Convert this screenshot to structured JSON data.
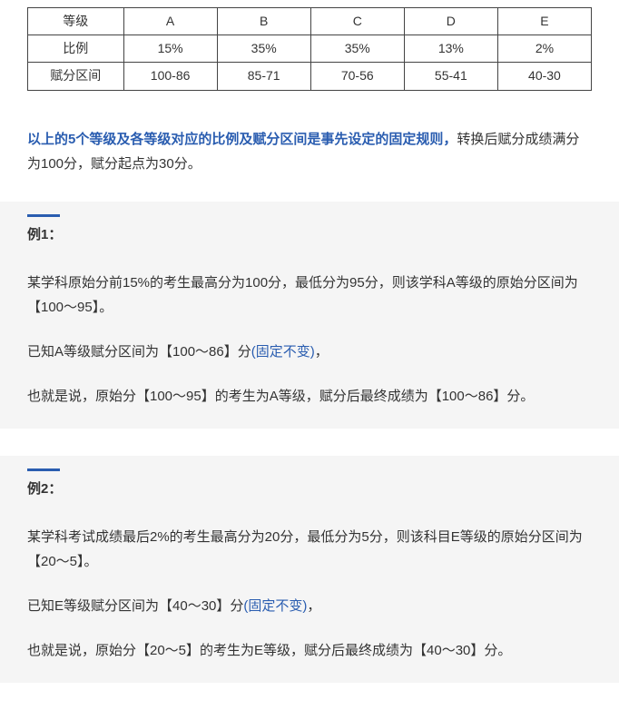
{
  "table": {
    "row_labels": [
      "等级",
      "比例",
      "赋分区间"
    ],
    "columns": [
      "A",
      "B",
      "C",
      "D",
      "E"
    ],
    "ratio": [
      "15%",
      "35%",
      "35%",
      "13%",
      "2%"
    ],
    "ranges": [
      "100-86",
      "85-71",
      "70-56",
      "55-41",
      "40-30"
    ],
    "border_color": "#444444",
    "bg_color": "#ffffff"
  },
  "intro": {
    "emph": "以上的5个等级及各等级对应的比例及赋分区间是事先设定的固定规则，",
    "rest": "转换后赋分成绩满分为100分，赋分起点为30分。"
  },
  "examples": [
    {
      "title": "例1：",
      "p1": "某学科原始分前15%的考生最高分为100分，最低分为95分，则该学科A等级的原始分区间为【100～95】。",
      "p2a": "已知A等级赋分区间为【100～86】分",
      "p2b": "(固定不变)",
      "p2c": "，",
      "p3": "也就是说，原始分【100～95】的考生为A等级，赋分后最终成绩为【100～86】分。"
    },
    {
      "title": "例2：",
      "p1": "某学科考试成绩最后2%的考生最高分为20分，最低分为5分，则该科目E等级的原始分区间为【20～5】。",
      "p2a": "已知E等级赋分区间为【40～30】分",
      "p2b": "(固定不变)",
      "p2c": "，",
      "p3": "也就是说，原始分【20～5】的考生为E等级，赋分后最终成绩为【40～30】分。"
    }
  ],
  "colors": {
    "blue": "#2a5db0",
    "box_bg": "#f5f5f5",
    "text": "#333333"
  }
}
